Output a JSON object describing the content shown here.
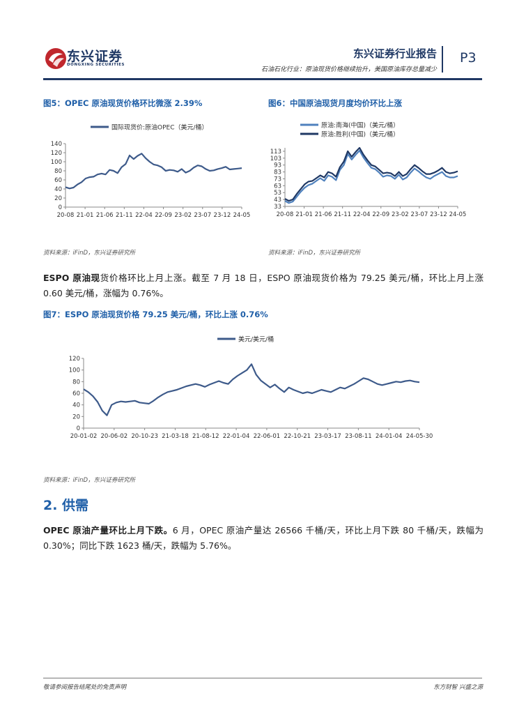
{
  "header": {
    "company": "东兴证券",
    "company_en": "DONGXING SECURITIES",
    "report_type": "东兴证券行业报告",
    "subtitle": "石油石化行业：原油现货价格继续抬升，美国原油库存总量减少",
    "page": "P3",
    "colors": {
      "navy": "#1f3864",
      "red": "#c0272d"
    }
  },
  "figures": [
    {
      "title": "图5：OPEC 原油现货价格环比微涨 2.39%",
      "source": "资料来源：iFinD，东兴证券研究所",
      "chart_data": {
        "type": "line",
        "legend": [
          "国际现货价:原油OPEC（美元/桶）"
        ],
        "x_ticks": [
          "20-08",
          "21-01",
          "21-06",
          "21-11",
          "22-04",
          "22-09",
          "23-02",
          "23-07",
          "23-12",
          "24-05"
        ],
        "y_ticks": [
          "0",
          "20",
          "40",
          "60",
          "80",
          "100",
          "120",
          "140"
        ],
        "ylim": [
          0,
          140
        ],
        "series": [
          {
            "values": [
              44,
              41,
              43,
              50,
              55,
              63,
              66,
              67,
              72,
              74,
              72,
              82,
              80,
              75,
              88,
              95,
              114,
              106,
              113,
              118,
              108,
              100,
              94,
              92,
              88,
              80,
              82,
              81,
              78,
              84,
              76,
              80,
              87,
              92,
              90,
              84,
              80,
              81,
              84,
              86,
              89,
              83,
              84,
              85,
              86
            ]
          }
        ]
      }
    },
    {
      "title": "图6：中国原油现货月度均价环比上涨",
      "source": "资料来源：iFinD，东兴证券研究所",
      "chart_data": {
        "type": "line",
        "legend": [
          "原油:南海(中国)（美元/桶）",
          "原油:胜利(中国)（美元/桶）"
        ],
        "x_ticks": [
          "20-08",
          "21-01",
          "21-06",
          "21-11",
          "22-04",
          "22-09",
          "23-02",
          "23-07",
          "23-12",
          "24-05"
        ],
        "y_ticks": [
          "33",
          "43",
          "53",
          "63",
          "73",
          "83",
          "93",
          "103",
          "113"
        ],
        "ylim": [
          33,
          118
        ],
        "series": [
          {
            "name": "原油:南海(中国)（美元/桶）",
            "color": "#4f81bd",
            "values": [
              41,
              38,
              40,
              47,
              54,
              60,
              64,
              66,
              70,
              74,
              70,
              78,
              76,
              71,
              86,
              93,
              109,
              101,
              108,
              114,
              104,
              96,
              89,
              87,
              82,
              76,
              78,
              77,
              73,
              79,
              72,
              75,
              82,
              88,
              84,
              79,
              75,
              73,
              77,
              80,
              83,
              77,
              75,
              75,
              77
            ]
          },
          {
            "name": "原油:胜利(中国)（美元/桶）",
            "color": "#1f3864",
            "values": [
              44,
              41,
              43,
              51,
              58,
              65,
              69,
              70,
              74,
              78,
              75,
              83,
              81,
              76,
              90,
              98,
              113,
              105,
              112,
              118,
              108,
              100,
              93,
              91,
              86,
              81,
              82,
              81,
              77,
              83,
              77,
              80,
              87,
              93,
              89,
              84,
              80,
              80,
              82,
              85,
              89,
              83,
              81,
              82,
              84
            ]
          }
        ]
      }
    },
    {
      "title": "图7：ESPO 原油现货价格 79.25 美元/桶，环比上涨 0.76%",
      "source": "资料来源：iFinD，东兴证券研究所",
      "chart_data": {
        "type": "line",
        "legend": [
          "美元/美元/桶"
        ],
        "x_ticks": [
          "20-01-02",
          "20-06-02",
          "20-10-23",
          "21-03-18",
          "21-08-12",
          "22-01-04",
          "22-06-01",
          "22-10-21",
          "23-03-17",
          "23-08-11",
          "24-01-04",
          "24-05-30"
        ],
        "y_ticks": [
          "0",
          "20",
          "40",
          "60",
          "80",
          "100",
          "120"
        ],
        "ylim": [
          0,
          120
        ],
        "series": [
          {
            "values": [
              67,
              62,
              55,
              45,
              30,
              22,
              40,
              44,
              46,
              45,
              46,
              47,
              44,
              43,
              42,
              47,
              53,
              58,
              62,
              64,
              66,
              69,
              72,
              74,
              76,
              74,
              71,
              75,
              78,
              81,
              78,
              76,
              84,
              90,
              95,
              100,
              110,
              92,
              82,
              76,
              70,
              75,
              68,
              62,
              70,
              66,
              63,
              60,
              62,
              60,
              63,
              66,
              64,
              62,
              66,
              70,
              68,
              72,
              76,
              81,
              86,
              84,
              80,
              76,
              74,
              76,
              78,
              80,
              79,
              81,
              82,
              80,
              79
            ]
          }
        ]
      }
    }
  ],
  "paragraphs": {
    "espo_lead": "ESPO 原油现",
    "espo_text": "货价格环比上月上涨。截至 7 月 18 日，ESPO 原油现货价格为 79.25 美元/桶，环比上月上涨 0.60 美元/桶，涨幅为 0.76%。",
    "supply_lead": "OPEC 原油产量环比上月下跌。",
    "supply_text": "6 月，OPEC 原油产量达 26566 千桶/天，环比上月下跌 80 千桶/天，跌幅为 0.30%；同比下跌 1623 桶/天，跌幅为 5.76%。"
  },
  "section": {
    "title": "2. 供需"
  },
  "footer": {
    "left": "敬请参阅报告结尾处的免责声明",
    "right": "东方财智  兴盛之源"
  }
}
